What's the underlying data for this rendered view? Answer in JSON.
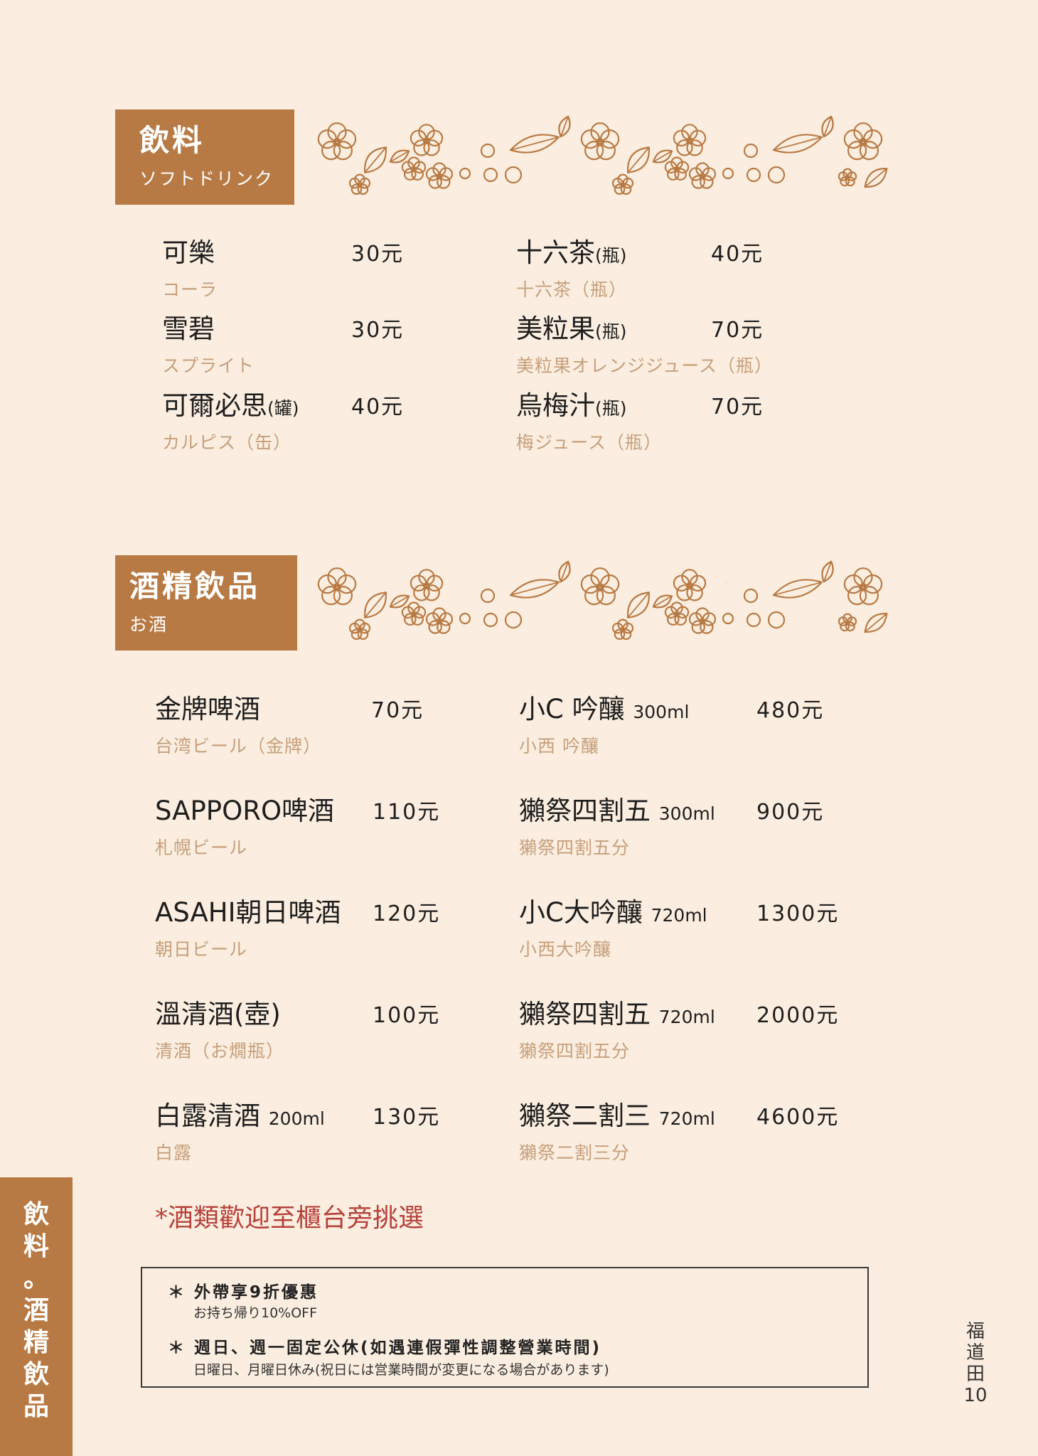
{
  "soft": {
    "title": "飲料",
    "subtitle": "ソフトドリンク",
    "items": [
      {
        "name": "可樂",
        "unit": "",
        "sub": "コーラ",
        "price": "30元"
      },
      {
        "name": "雪碧",
        "unit": "",
        "sub": "スプライト",
        "price": "30元"
      },
      {
        "name": "可爾必思",
        "unit": "(罐)",
        "sub": "カルピス（缶）",
        "price": "40元"
      },
      {
        "name": "十六茶",
        "unit": "(瓶)",
        "sub": "十六茶（瓶）",
        "price": "40元"
      },
      {
        "name": "美粒果",
        "unit": "(瓶)",
        "sub": "美粒果オレンジジュース（瓶）",
        "price": "70元"
      },
      {
        "name": "烏梅汁",
        "unit": "(瓶)",
        "sub": "梅ジュース（瓶）",
        "price": "70元"
      }
    ]
  },
  "alcohol": {
    "title": "酒精飲品",
    "subtitle": "お酒",
    "items": [
      {
        "name": "金牌啤酒",
        "unit": "",
        "sub": "台湾ビール（金牌）",
        "price": "70元"
      },
      {
        "name": "SAPPORO啤酒",
        "unit": "",
        "sub": "札幌ビール",
        "price": "110元"
      },
      {
        "name": "ASAHI朝日啤酒",
        "unit": "",
        "sub": "朝日ビール",
        "price": "120元"
      },
      {
        "name": "溫清酒(壺)",
        "unit": "",
        "sub": "清酒（お燗瓶）",
        "price": "100元"
      },
      {
        "name": "白露清酒",
        "unit": "200ml",
        "sub": "白露",
        "price": "130元"
      },
      {
        "name": "小C 吟釀",
        "unit": "300ml",
        "sub": "小西 吟釀",
        "price": "480元"
      },
      {
        "name": "獺祭四割五",
        "unit": "300ml",
        "sub": "獺祭四割五分",
        "price": "900元"
      },
      {
        "name": "小C大吟釀",
        "unit": "720ml",
        "sub": "小西大吟釀",
        "price": "1300元"
      },
      {
        "name": "獺祭四割五",
        "unit": "720ml",
        "sub": "獺祭四割五分",
        "price": "2000元"
      },
      {
        "name": "獺祭二割三",
        "unit": "720ml",
        "sub": "獺祭二割三分",
        "price": "4600元"
      }
    ]
  },
  "note": "*酒類歡迎至櫃台旁挑選",
  "info": {
    "line1": "＊ 外帶享9折優惠",
    "line1_sub": "お持ち帰り10%OFF",
    "line2": "＊ 週日、週一固定公休(如遇連假彈性調整營業時間)",
    "line2_sub": "日曜日、月曜日休み(祝日には営業時間が変更になる場合があります)"
  },
  "side_tab": [
    "飲",
    "料",
    "。",
    "酒",
    "精",
    "飲",
    "品"
  ],
  "page_label": [
    "福",
    "道",
    "田",
    "10"
  ],
  "colors": {
    "accent": "#b87a44",
    "background": "#fbeee0",
    "subtext": "#c69f7b",
    "note": "#b5413a"
  },
  "decoration_icon": "sakura-leaf-berry-icon"
}
